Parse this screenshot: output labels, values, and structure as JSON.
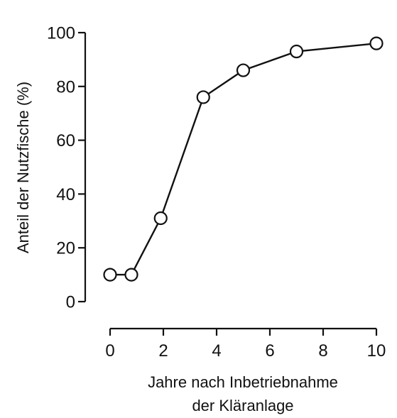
{
  "chart_data": {
    "type": "line",
    "xlabel_lines": [
      "Jahre nach Inbetriebnahme",
      "der Kläranlage"
    ],
    "ylabel": "Anteil der Nutzfische (%)",
    "xlim": [
      0,
      10
    ],
    "ylim": [
      0,
      100
    ],
    "xticks": [
      0,
      2,
      4,
      6,
      8,
      10
    ],
    "yticks": [
      0,
      20,
      40,
      60,
      80,
      100
    ],
    "grid": false,
    "series": [
      {
        "x": [
          0,
          0.8,
          1.9,
          3.5,
          5.0,
          7.0,
          10.0
        ],
        "y": [
          10,
          10,
          31,
          76,
          86,
          93,
          96
        ],
        "marker": "open-circle",
        "color": "#111111"
      }
    ]
  }
}
